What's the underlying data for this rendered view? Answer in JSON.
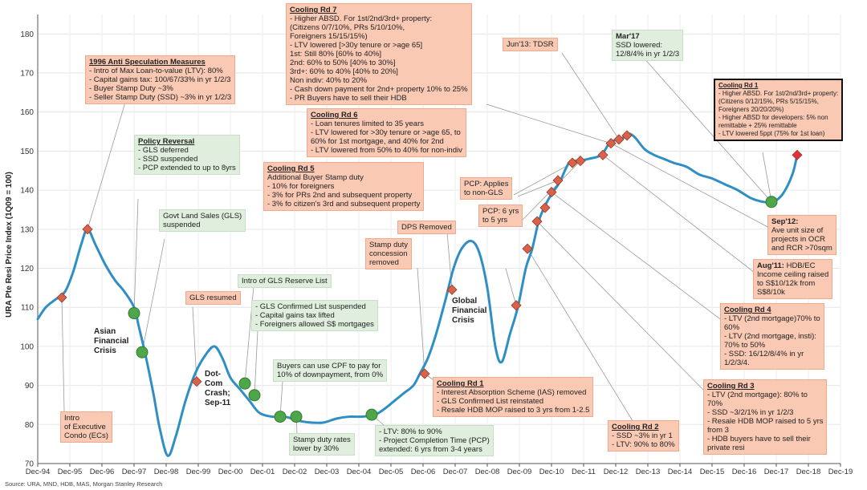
{
  "chart_data": {
    "type": "line",
    "ylabel": "URA Pte Resi Price Index (1Q09 = 100)",
    "ylim": [
      70,
      185
    ],
    "yticks": [
      70,
      80,
      90,
      100,
      110,
      120,
      130,
      140,
      150,
      160,
      170,
      180
    ],
    "xlabels": [
      "Dec-94",
      "Dec-95",
      "Dec-96",
      "Dec-97",
      "Dec-98",
      "Dec-99",
      "Dec-00",
      "Dec-01",
      "Dec-02",
      "Dec-03",
      "Dec-04",
      "Dec-05",
      "Dec-06",
      "Dec-07",
      "Dec-08",
      "Dec-09",
      "Dec-10",
      "Dec-11",
      "Dec-12",
      "Dec-13",
      "Dec-14",
      "Dec-15",
      "Dec-16",
      "Dec-17",
      "Dec-18",
      "Dec-19"
    ],
    "xlim": [
      0,
      25
    ],
    "grid": true,
    "series": [
      {
        "name": "",
        "color": "#2f8fc4",
        "points": [
          [
            0.0,
            107
          ],
          [
            0.25,
            110
          ],
          [
            0.55,
            112
          ],
          [
            0.85,
            114
          ],
          [
            1.1,
            119
          ],
          [
            1.35,
            126
          ],
          [
            1.55,
            130
          ],
          [
            1.8,
            126
          ],
          [
            2.1,
            121
          ],
          [
            2.4,
            117
          ],
          [
            2.7,
            114
          ],
          [
            3.0,
            110
          ],
          [
            3.15,
            105
          ],
          [
            3.35,
            98
          ],
          [
            3.6,
            88
          ],
          [
            3.8,
            79
          ],
          [
            4.05,
            72
          ],
          [
            4.3,
            77
          ],
          [
            4.6,
            86
          ],
          [
            4.9,
            93
          ],
          [
            5.2,
            97.5
          ],
          [
            5.5,
            100
          ],
          [
            5.75,
            97
          ],
          [
            6.0,
            92
          ],
          [
            6.3,
            89
          ],
          [
            6.6,
            86
          ],
          [
            6.9,
            83
          ],
          [
            7.3,
            82
          ],
          [
            7.7,
            82
          ],
          [
            8.1,
            81
          ],
          [
            8.5,
            80.5
          ],
          [
            8.9,
            80.5
          ],
          [
            9.3,
            81.5
          ],
          [
            9.7,
            82
          ],
          [
            10.1,
            82
          ],
          [
            10.5,
            82.5
          ],
          [
            10.8,
            84
          ],
          [
            11.1,
            86
          ],
          [
            11.4,
            88
          ],
          [
            11.7,
            90
          ],
          [
            11.9,
            93
          ],
          [
            12.15,
            97
          ],
          [
            12.4,
            103
          ],
          [
            12.7,
            112
          ],
          [
            12.95,
            120
          ],
          [
            13.2,
            125
          ],
          [
            13.5,
            127
          ],
          [
            13.75,
            124
          ],
          [
            14.0,
            115
          ],
          [
            14.25,
            100
          ],
          [
            14.45,
            96
          ],
          [
            14.7,
            103
          ],
          [
            14.95,
            110
          ],
          [
            15.2,
            120
          ],
          [
            15.4,
            125
          ],
          [
            15.6,
            132
          ],
          [
            15.8,
            136
          ],
          [
            16.0,
            139
          ],
          [
            16.25,
            142
          ],
          [
            16.55,
            147
          ],
          [
            16.85,
            147.5
          ],
          [
            17.15,
            148
          ],
          [
            17.55,
            149
          ],
          [
            17.8,
            152
          ],
          [
            18.05,
            153
          ],
          [
            18.25,
            153.5
          ],
          [
            18.4,
            154.5
          ],
          [
            18.6,
            153.5
          ],
          [
            18.9,
            150.5
          ],
          [
            19.2,
            149
          ],
          [
            19.5,
            148
          ],
          [
            19.8,
            147
          ],
          [
            20.2,
            146
          ],
          [
            20.6,
            144
          ],
          [
            21.0,
            143
          ],
          [
            21.4,
            141.5
          ],
          [
            21.8,
            140
          ],
          [
            22.2,
            138
          ],
          [
            22.6,
            137
          ],
          [
            22.9,
            137
          ],
          [
            23.2,
            139
          ],
          [
            23.5,
            144
          ],
          [
            23.65,
            149
          ]
        ]
      }
    ],
    "markers": [
      {
        "x": 0.75,
        "y": 112.5,
        "shape": "diamond"
      },
      {
        "x": 1.55,
        "y": 130,
        "shape": "diamond"
      },
      {
        "x": 3.0,
        "y": 108.5,
        "shape": "circle"
      },
      {
        "x": 3.25,
        "y": 98.5,
        "shape": "circle"
      },
      {
        "x": 4.95,
        "y": 91,
        "shape": "diamond"
      },
      {
        "x": 6.45,
        "y": 90.5,
        "shape": "circle"
      },
      {
        "x": 6.75,
        "y": 87.5,
        "shape": "circle"
      },
      {
        "x": 7.55,
        "y": 82,
        "shape": "circle"
      },
      {
        "x": 8.05,
        "y": 82,
        "shape": "circle"
      },
      {
        "x": 10.4,
        "y": 82.5,
        "shape": "circle"
      },
      {
        "x": 12.05,
        "y": 93,
        "shape": "diamond"
      },
      {
        "x": 12.9,
        "y": 114.5,
        "shape": "diamond"
      },
      {
        "x": 14.9,
        "y": 110.5,
        "shape": "diamond"
      },
      {
        "x": 15.25,
        "y": 125,
        "shape": "diamond"
      },
      {
        "x": 15.55,
        "y": 132,
        "shape": "diamond"
      },
      {
        "x": 15.8,
        "y": 135.5,
        "shape": "diamond"
      },
      {
        "x": 16.0,
        "y": 139.5,
        "shape": "diamond"
      },
      {
        "x": 16.2,
        "y": 142.5,
        "shape": "diamond"
      },
      {
        "x": 16.65,
        "y": 147,
        "shape": "diamond"
      },
      {
        "x": 16.9,
        "y": 147.5,
        "shape": "diamond"
      },
      {
        "x": 17.6,
        "y": 149,
        "shape": "diamond"
      },
      {
        "x": 17.85,
        "y": 152,
        "shape": "diamond"
      },
      {
        "x": 18.1,
        "y": 153,
        "shape": "diamond"
      },
      {
        "x": 18.35,
        "y": 154,
        "shape": "diamond"
      },
      {
        "x": 22.85,
        "y": 137,
        "shape": "circle"
      },
      {
        "x": 23.65,
        "y": 149,
        "shape": "diamond",
        "color": "#e0303a"
      }
    ]
  },
  "colors": {
    "line": "#2f8fc4",
    "diamond": "#d9634a",
    "circle": "#4ea54a",
    "callout_red": "#f9c9b4",
    "callout_green": "#dfeedd"
  },
  "annotations": [
    {
      "id": "ecs",
      "color": "red",
      "lines": [
        "Intro",
        "of Executive",
        "Condo (ECs)"
      ]
    },
    {
      "id": "anti",
      "color": "red",
      "title": "1996 Anti Speculation Measures",
      "lines": [
        "- Intro of Max Loan-to-value (LTV): 80%",
        "- Capital gains tax: 100/67/33% in yr 1/2/3",
        "- Buyer Stamp Duty ~3%",
        "- Seller Stamp Duty (SSD) ~3% in yr 1/2/3"
      ]
    },
    {
      "id": "reversal",
      "color": "green",
      "title": "Policy Reversal",
      "lines": [
        "- GLS deferred",
        "- SSD suspended",
        "- PCP extended to up to 8yrs"
      ]
    },
    {
      "id": "gls_susp",
      "color": "green",
      "lines": [
        "Govt Land Sales (GLS)",
        "suspended"
      ]
    },
    {
      "id": "asian",
      "color": "plain",
      "lines": [
        "Asian",
        "Financial",
        "Crisis"
      ]
    },
    {
      "id": "gls_resumed",
      "color": "red",
      "lines": [
        "GLS resumed"
      ]
    },
    {
      "id": "dotcom",
      "color": "plain",
      "lines": [
        "Dot-",
        "Com",
        "Crash;",
        "Sep-11"
      ]
    },
    {
      "id": "reserve",
      "color": "green",
      "lines": [
        "Intro of GLS Reserve List"
      ]
    },
    {
      "id": "confirmed",
      "color": "green",
      "lines": [
        "- GLS Confirmed List suspended",
        "- Capital gains tax lifted",
        "- Foreigners allowed S$ mortgages"
      ]
    },
    {
      "id": "cpf",
      "color": "green",
      "lines": [
        "Buyers can use CPF to pay for",
        "10% of downpayment, from 0%"
      ]
    },
    {
      "id": "stampduty",
      "color": "green",
      "lines": [
        "Stamp duty rates",
        "lower by 30%"
      ]
    },
    {
      "id": "ltv90",
      "color": "green",
      "lines": [
        "- LTV: 80% to 90%",
        "- Project Completion Time (PCP)",
        "  extended: 6 yrs from 3-4 years"
      ]
    },
    {
      "id": "sdc",
      "color": "red",
      "lines": [
        "Stamp duty",
        "concession",
        "removed"
      ]
    },
    {
      "id": "dps",
      "color": "red",
      "lines": [
        "DPS Removed"
      ]
    },
    {
      "id": "gfc",
      "color": "plain",
      "lines": [
        "Global",
        "Financial",
        "Crisis"
      ]
    },
    {
      "id": "rd7",
      "color": "red",
      "title": "Cooling Rd 7",
      "lines": [
        "- Higher ABSD. For 1st/2nd/3rd+ property:",
        "(Citizens 0/7/10%, PRs 5/10/10%,",
        "Foreigners 15/15/15%)",
        "- LTV lowered [>30y tenure or >age 65]",
        "1st: Still 80% [60% to 40%]",
        "2nd: 60% to 50% [40% to 30%]",
        "3rd+: 60% to 40% [40% to 20%]",
        "Non indiv: 40% to 20%",
        "- Cash down payment for 2nd+ property 10% to 25%",
        "- PR Buyers have to sell  their HDB"
      ]
    },
    {
      "id": "rd6",
      "color": "red",
      "title": "Cooling Rd 6",
      "lines": [
        "- Loan tenures limited to 35 years",
        "- LTV lowered for >30y tenure or >age 65, to",
        "60% for 1st mortgage, and 40% for 2nd",
        "- LTV lowered from 50% to 40% for non-indiv"
      ]
    },
    {
      "id": "rd5",
      "color": "red",
      "title": "Cooling Rd 5",
      "lines": [
        "Additional Buyer Stamp duty",
        "- 10% for foreigners",
        "- 3% for PRs 2nd and subsequent property",
        "- 3% fo citizen's 3rd and subsequent property"
      ]
    },
    {
      "id": "tdsr",
      "color": "red",
      "lines": [
        "Jun'13: TDSR"
      ]
    },
    {
      "id": "mar17",
      "color": "green",
      "title": "Mar'17",
      "title_plain": true,
      "lines": [
        "SSD lowered:",
        "12/8/4% in yr 1/2/3"
      ]
    },
    {
      "id": "rd1new",
      "color": "boxed",
      "title": "Cooling Rd 1",
      "lines": [
        "- Higher ABSD. For 1st/2nd/3rd+ property:",
        "(Citizens 0/12/15%, PRs 5/15/15%,",
        "Foreigners 20/20/20%)",
        "- Higher ABSD for developers: 5% non",
        "  remittable + 25% remittable",
        "- LTV lowered  5ppt (75% for 1st loan)"
      ]
    },
    {
      "id": "pcp_gls",
      "color": "red",
      "lines": [
        "PCP: Applies",
        "to non-GLS"
      ]
    },
    {
      "id": "pcp6",
      "color": "red",
      "lines": [
        "PCP: 6 yrs",
        "to 5 yrs"
      ]
    },
    {
      "id": "sep12",
      "color": "red",
      "title": "Sep'12:",
      "title_plain": true,
      "lines": [
        "Ave unit size of",
        "projects in OCR",
        "and RCR >70sqm"
      ]
    },
    {
      "id": "aug11",
      "color": "red",
      "title": "Aug'11:",
      "title_plain": true,
      "title_inline": "HDB/EC",
      "lines": [
        "Income ceiling raised",
        "to S$10/12k from",
        "S$8/10k"
      ]
    },
    {
      "id": "rd4",
      "color": "red",
      "title": "Cooling Rd 4",
      "lines": [
        "- LTV (2nd mortgage)70% to",
        "60%",
        "- LTV (2nd mortgage, insti):",
        "70% to 50%",
        "- SSD: 16/12/8/4% in yr",
        "1/2/3/4."
      ]
    },
    {
      "id": "rd1old",
      "color": "red",
      "title": "Cooling Rd 1",
      "lines": [
        "- Interest Absorption Scheme (IAS) removed",
        "- GLS Confirmed List reinstated",
        "- Resale HDB MOP raised to 3 yrs from 1-2.5"
      ]
    },
    {
      "id": "rd2",
      "color": "red",
      "title": "Cooling Rd 2",
      "lines": [
        "- SSD ~3% in yr 1",
        "- LTV: 90% to 80%"
      ]
    },
    {
      "id": "rd3",
      "color": "red",
      "title": "Cooling Rd 3",
      "lines": [
        "- LTV (2nd mortgage): 80% to",
        "70%",
        "- SSD ~3/2/1% in yr 1/2/3",
        "- Resale HDB MOP raised to 5 yrs",
        "from 3",
        "- HDB buyers have to sell their",
        "private resi"
      ]
    }
  ],
  "source": "Source: URA, MND, HDB, MAS, Morgan Stanley Research"
}
